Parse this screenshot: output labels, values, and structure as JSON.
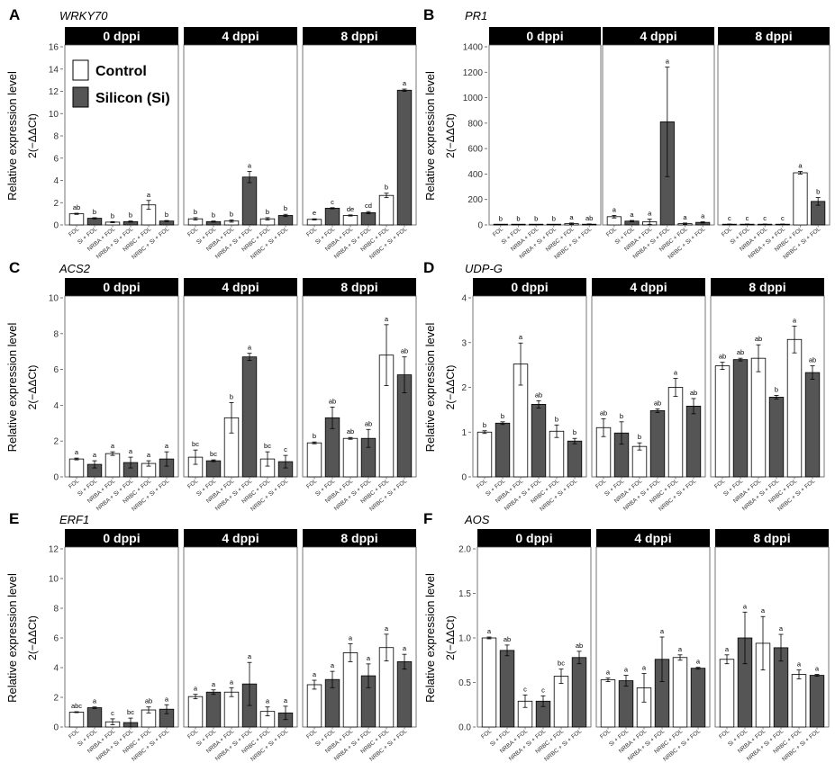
{
  "facets": [
    "0 dppi",
    "4 dppi",
    "8 dppi"
  ],
  "categories": [
    "FOL",
    "Si + FOL",
    "NRBA + FOL",
    "NRBA + Si + FOL",
    "NRBC + FOL",
    "NRBC + Si + FOL"
  ],
  "ylabel_line1": "Relative expression level",
  "ylabel_line2": "2(−ΔΔCt)",
  "legend": [
    {
      "label": "Control",
      "color": "#ffffff"
    },
    {
      "label": "Silicon (Si)",
      "color": "#555555"
    }
  ],
  "colors": {
    "control": "#ffffff",
    "silicon": "#555555",
    "strip": "#000000"
  },
  "chart_data": [
    {
      "panel": "A",
      "title": "WRKY70",
      "type": "bar",
      "ylim": [
        0,
        16
      ],
      "yticks": [
        0,
        2,
        4,
        6,
        8,
        10,
        12,
        14,
        16
      ],
      "values": [
        [
          1.0,
          0.6,
          0.25,
          0.3,
          1.8,
          0.35
        ],
        [
          0.55,
          0.3,
          0.35,
          4.3,
          0.55,
          0.85
        ],
        [
          0.5,
          1.5,
          0.85,
          1.1,
          2.65,
          12.1
        ]
      ],
      "errors": [
        [
          0.05,
          0.05,
          0.05,
          0.05,
          0.4,
          0.05
        ],
        [
          0.1,
          0.05,
          0.1,
          0.5,
          0.1,
          0.1
        ],
        [
          0.05,
          0.05,
          0.05,
          0.1,
          0.2,
          0.1
        ]
      ],
      "letters": [
        [
          "ab",
          "b",
          "b",
          "b",
          "a",
          "b"
        ],
        [
          "b",
          "b",
          "b",
          "a",
          "b",
          "b"
        ],
        [
          "e",
          "c",
          "de",
          "cd",
          "b",
          "a"
        ]
      ],
      "legend_shown": true
    },
    {
      "panel": "B",
      "title": "PR1",
      "type": "bar",
      "ylim": [
        0,
        1400
      ],
      "yticks": [
        0,
        200,
        400,
        600,
        800,
        1000,
        1200,
        1400
      ],
      "values": [
        [
          2,
          2,
          2,
          2,
          10,
          5
        ],
        [
          65,
          30,
          25,
          810,
          10,
          20
        ],
        [
          5,
          5,
          5,
          5,
          410,
          185
        ]
      ],
      "errors": [
        [
          1,
          1,
          1,
          1,
          5,
          3
        ],
        [
          10,
          5,
          20,
          430,
          5,
          5
        ],
        [
          2,
          2,
          2,
          2,
          10,
          30
        ]
      ],
      "letters": [
        [
          "b",
          "b",
          "b",
          "b",
          "a",
          "ab"
        ],
        [
          "a",
          "a",
          "a",
          "a",
          "a",
          "a"
        ],
        [
          "c",
          "c",
          "c",
          "c",
          "a",
          "b"
        ]
      ]
    },
    {
      "panel": "C",
      "title": "ACS2",
      "type": "bar",
      "ylim": [
        0,
        10
      ],
      "yticks": [
        0,
        2,
        4,
        6,
        8,
        10
      ],
      "values": [
        [
          1.0,
          0.7,
          1.3,
          0.8,
          0.75,
          1.0
        ],
        [
          1.1,
          0.9,
          3.3,
          6.7,
          1.0,
          0.85
        ],
        [
          1.9,
          3.3,
          2.15,
          2.15,
          6.8,
          5.7
        ]
      ],
      "errors": [
        [
          0.05,
          0.2,
          0.1,
          0.3,
          0.15,
          0.4
        ],
        [
          0.4,
          0.05,
          0.85,
          0.2,
          0.4,
          0.35
        ],
        [
          0.05,
          0.6,
          0.05,
          0.5,
          1.7,
          1.0
        ]
      ],
      "letters": [
        [
          "a",
          "a",
          "a",
          "a",
          "a",
          "a"
        ],
        [
          "bc",
          "bc",
          "b",
          "a",
          "bc",
          "c"
        ],
        [
          "b",
          "ab",
          "ab",
          "ab",
          "a",
          "ab"
        ]
      ]
    },
    {
      "panel": "D",
      "title": "UDP-G",
      "type": "bar",
      "ylim": [
        0,
        4
      ],
      "yticks": [
        0,
        1,
        2,
        3,
        4
      ],
      "values": [
        [
          1.0,
          1.2,
          2.52,
          1.62,
          1.02,
          0.8
        ],
        [
          1.1,
          0.98,
          0.68,
          1.48,
          2.0,
          1.58
        ],
        [
          2.48,
          2.62,
          2.65,
          1.78,
          3.07,
          2.33
        ]
      ],
      "errors": [
        [
          0.03,
          0.03,
          0.47,
          0.08,
          0.14,
          0.06
        ],
        [
          0.2,
          0.25,
          0.08,
          0.04,
          0.2,
          0.17
        ],
        [
          0.08,
          0.03,
          0.3,
          0.04,
          0.3,
          0.15
        ]
      ],
      "letters": [
        [
          "b",
          "b",
          "a",
          "ab",
          "b",
          "b"
        ],
        [
          "ab",
          "b",
          "b",
          "ab",
          "a",
          "ab"
        ],
        [
          "ab",
          "ab",
          "ab",
          "b",
          "a",
          "ab"
        ]
      ]
    },
    {
      "panel": "E",
      "title": "ERF1",
      "type": "bar",
      "ylim": [
        0,
        12
      ],
      "yticks": [
        0,
        2,
        4,
        6,
        8,
        10,
        12
      ],
      "values": [
        [
          1.0,
          1.3,
          0.35,
          0.3,
          1.15,
          1.2
        ],
        [
          2.05,
          2.35,
          2.35,
          2.9,
          1.05,
          0.95
        ],
        [
          2.85,
          3.2,
          5.0,
          3.45,
          5.35,
          4.4
        ]
      ],
      "errors": [
        [
          0.03,
          0.05,
          0.2,
          0.3,
          0.2,
          0.3
        ],
        [
          0.15,
          0.15,
          0.3,
          1.45,
          0.3,
          0.45
        ],
        [
          0.3,
          0.55,
          0.6,
          0.8,
          0.9,
          0.5
        ]
      ],
      "letters": [
        [
          "abc",
          "a",
          "c",
          "bc",
          "ab",
          "a"
        ],
        [
          "a",
          "a",
          "a",
          "a",
          "a",
          "a"
        ],
        [
          "a",
          "a",
          "a",
          "a",
          "a",
          "a"
        ]
      ]
    },
    {
      "panel": "F",
      "title": "AOS",
      "type": "bar",
      "ylim": [
        0,
        2.0
      ],
      "yticks": [
        0,
        0.5,
        1.0,
        1.5,
        2.0
      ],
      "ytick_labels": [
        "0.0",
        "0.5",
        "1.0",
        "1.5",
        "2.0"
      ],
      "values": [
        [
          1.0,
          0.86,
          0.29,
          0.29,
          0.57,
          0.78
        ],
        [
          0.53,
          0.52,
          0.44,
          0.76,
          0.78,
          0.66
        ],
        [
          0.76,
          1.0,
          0.94,
          0.89,
          0.59,
          0.58
        ]
      ],
      "errors": [
        [
          0.01,
          0.06,
          0.07,
          0.06,
          0.08,
          0.07
        ],
        [
          0.02,
          0.06,
          0.16,
          0.25,
          0.03,
          0.01
        ],
        [
          0.05,
          0.29,
          0.3,
          0.15,
          0.05,
          0.01
        ]
      ],
      "letters": [
        [
          "a",
          "ab",
          "c",
          "c",
          "bc",
          "ab"
        ],
        [
          "a",
          "a",
          "a",
          "a",
          "a",
          "a"
        ],
        [
          "a",
          "a",
          "a",
          "a",
          "a",
          "a"
        ]
      ]
    }
  ]
}
